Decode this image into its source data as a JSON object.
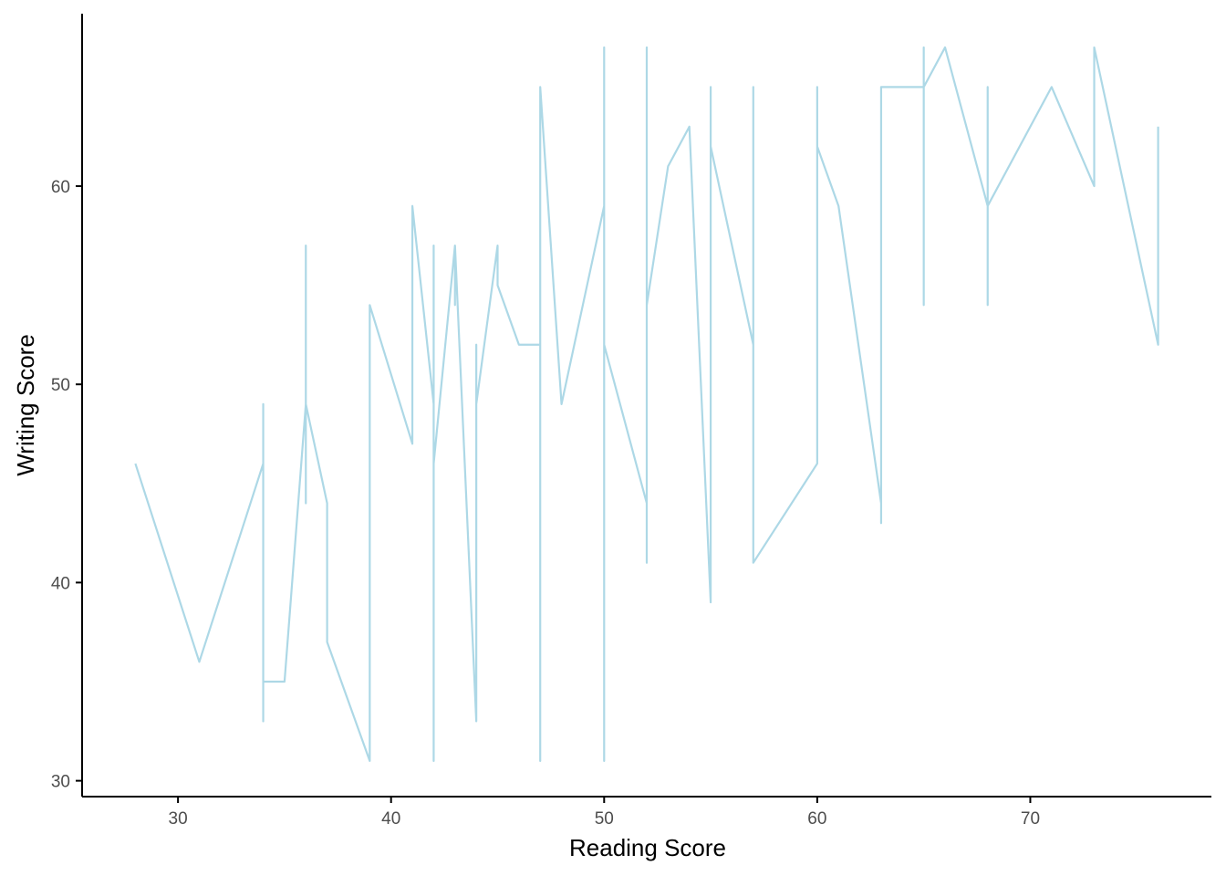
{
  "chart_data": {
    "type": "line",
    "title": "",
    "xlabel": "Reading Score",
    "ylabel": "Writing Score",
    "xlim": [
      25.5,
      78.5
    ],
    "ylim": [
      29.2,
      68.7
    ],
    "x_ticks": [
      30,
      40,
      50,
      60,
      70
    ],
    "y_ticks": [
      30,
      40,
      50,
      60
    ],
    "grid": false,
    "legend": "none",
    "colors": {
      "line": "#add8e6",
      "axis": "#000000",
      "tick_label": "#4d4d4d"
    },
    "series": [
      {
        "x": [
          28,
          31,
          34,
          34,
          34,
          34,
          34,
          35,
          36,
          36,
          36,
          36,
          37,
          37,
          37,
          39,
          39,
          39,
          41,
          41,
          41,
          42,
          42,
          42,
          42,
          43,
          43,
          43,
          44,
          44,
          44,
          44,
          45,
          45,
          45,
          46,
          47,
          47,
          47,
          47,
          48,
          50,
          50,
          50,
          50,
          50,
          52,
          52,
          52,
          52,
          52,
          53,
          54,
          55,
          55,
          55,
          55,
          57,
          57,
          57,
          57,
          60,
          60,
          60,
          61,
          63,
          63,
          63,
          63,
          65,
          65,
          65,
          65,
          66,
          68,
          68,
          68,
          68,
          71,
          73,
          73,
          73,
          76,
          76
        ],
        "y": [
          46,
          36,
          46,
          33,
          49,
          46,
          35,
          35,
          49,
          44,
          57,
          49,
          44,
          44,
          37,
          31,
          54,
          54,
          47,
          59,
          59,
          49,
          57,
          31,
          46,
          57,
          54,
          57,
          33,
          52,
          49,
          49,
          57,
          55,
          55,
          52,
          52,
          31,
          65,
          65,
          49,
          59,
          31,
          67,
          52,
          52,
          44,
          41,
          67,
          54,
          54,
          61,
          63,
          39,
          65,
          62,
          62,
          52,
          65,
          41,
          41,
          46,
          65,
          62,
          59,
          44,
          43,
          65,
          65,
          65,
          54,
          67,
          65,
          67,
          59,
          54,
          65,
          59,
          65,
          60,
          67,
          67,
          52,
          63
        ]
      }
    ]
  }
}
